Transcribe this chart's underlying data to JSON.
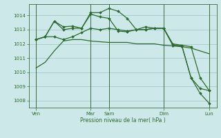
{
  "background_color": "#cce8e8",
  "grid_color": "#aacece",
  "line_color": "#2d6a2d",
  "marker_color": "#2d6a2d",
  "xlabel": "Pression niveau de la mer( hPa )",
  "ylim": [
    1007.5,
    1014.8
  ],
  "yticks": [
    1008,
    1009,
    1010,
    1011,
    1012,
    1013,
    1014
  ],
  "xlim": [
    -0.3,
    20.3
  ],
  "xtick_labels": [
    "Ven",
    "Mar",
    "Sam",
    "Dim",
    "Lun"
  ],
  "xtick_positions": [
    0.5,
    6.5,
    8.5,
    14.5,
    19.5
  ],
  "vlines": [
    0.5,
    6.5,
    8.5,
    14.5,
    19.5
  ],
  "series1_x": [
    0.5,
    1.5,
    2.5,
    3.5,
    4.5,
    5.5,
    6.5,
    7.5,
    8.5,
    9.5,
    10.5,
    11.5,
    12.5,
    13.5,
    14.5,
    15.5,
    16.5,
    17.5,
    18.5,
    19.5
  ],
  "series1_y": [
    1010.3,
    1010.7,
    1011.5,
    1012.2,
    1012.3,
    1012.3,
    1012.2,
    1012.15,
    1012.1,
    1012.1,
    1012.1,
    1012.0,
    1012.0,
    1012.0,
    1011.9,
    1011.85,
    1011.8,
    1011.7,
    1011.5,
    1011.3
  ],
  "series2_x": [
    0.5,
    1.5,
    2.5,
    3.5,
    4.5,
    5.5,
    6.5,
    7.5,
    8.5,
    9.5,
    10.5,
    11.5,
    12.5,
    13.5,
    14.5,
    15.5,
    16.5,
    17.5,
    18.5,
    19.5
  ],
  "series2_y": [
    1012.3,
    1012.5,
    1012.5,
    1012.3,
    1012.5,
    1012.8,
    1013.1,
    1013.0,
    1013.1,
    1013.0,
    1012.9,
    1013.0,
    1013.0,
    1013.1,
    1013.1,
    1012.0,
    1011.9,
    1011.8,
    1009.6,
    1008.7
  ],
  "series3_x": [
    0.5,
    1.5,
    2.5,
    3.5,
    4.5,
    5.5,
    6.5,
    7.5,
    8.5,
    9.5,
    10.5,
    11.5,
    12.5,
    13.5,
    14.5,
    15.5,
    16.5,
    17.5,
    18.5,
    19.5
  ],
  "series3_y": [
    1012.3,
    1012.5,
    1013.6,
    1013.0,
    1013.1,
    1013.1,
    1014.1,
    1013.9,
    1013.8,
    1012.9,
    1012.85,
    1013.0,
    1013.0,
    1013.1,
    1013.1,
    1011.9,
    1011.85,
    1009.6,
    1008.85,
    1008.7
  ],
  "series4_x": [
    0.5,
    1.5,
    2.5,
    3.5,
    4.5,
    5.5,
    6.5,
    7.5,
    8.5,
    9.5,
    10.5,
    11.5,
    12.5,
    13.5,
    14.5,
    15.5,
    16.5,
    17.5,
    18.5,
    19.5
  ],
  "series4_y": [
    1012.3,
    1012.5,
    1013.6,
    1013.2,
    1013.25,
    1013.1,
    1014.2,
    1014.2,
    1014.5,
    1014.3,
    1013.8,
    1013.0,
    1013.2,
    1013.1,
    1013.1,
    1011.9,
    1011.85,
    1009.6,
    1008.5,
    1007.8
  ]
}
